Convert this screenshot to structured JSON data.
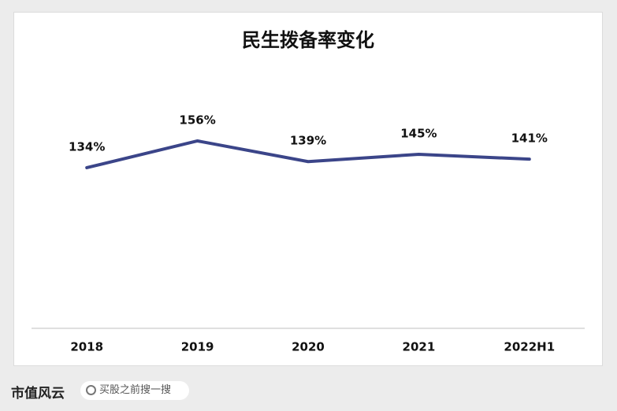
{
  "chart_data": {
    "type": "line",
    "title": "民生拨备率变化",
    "categories": [
      "2018",
      "2019",
      "2020",
      "2021",
      "2022H1"
    ],
    "series": [
      {
        "name": "拨备率",
        "color": "#3b4589",
        "values": [
          134,
          156,
          139,
          145,
          141
        ],
        "value_labels": [
          "134%",
          "156%",
          "139%",
          "145%",
          "141%"
        ]
      }
    ],
    "ylim": [
      0,
      200
    ]
  },
  "footer": {
    "brand": "市值风云",
    "search": "买股之前搜一搜"
  }
}
